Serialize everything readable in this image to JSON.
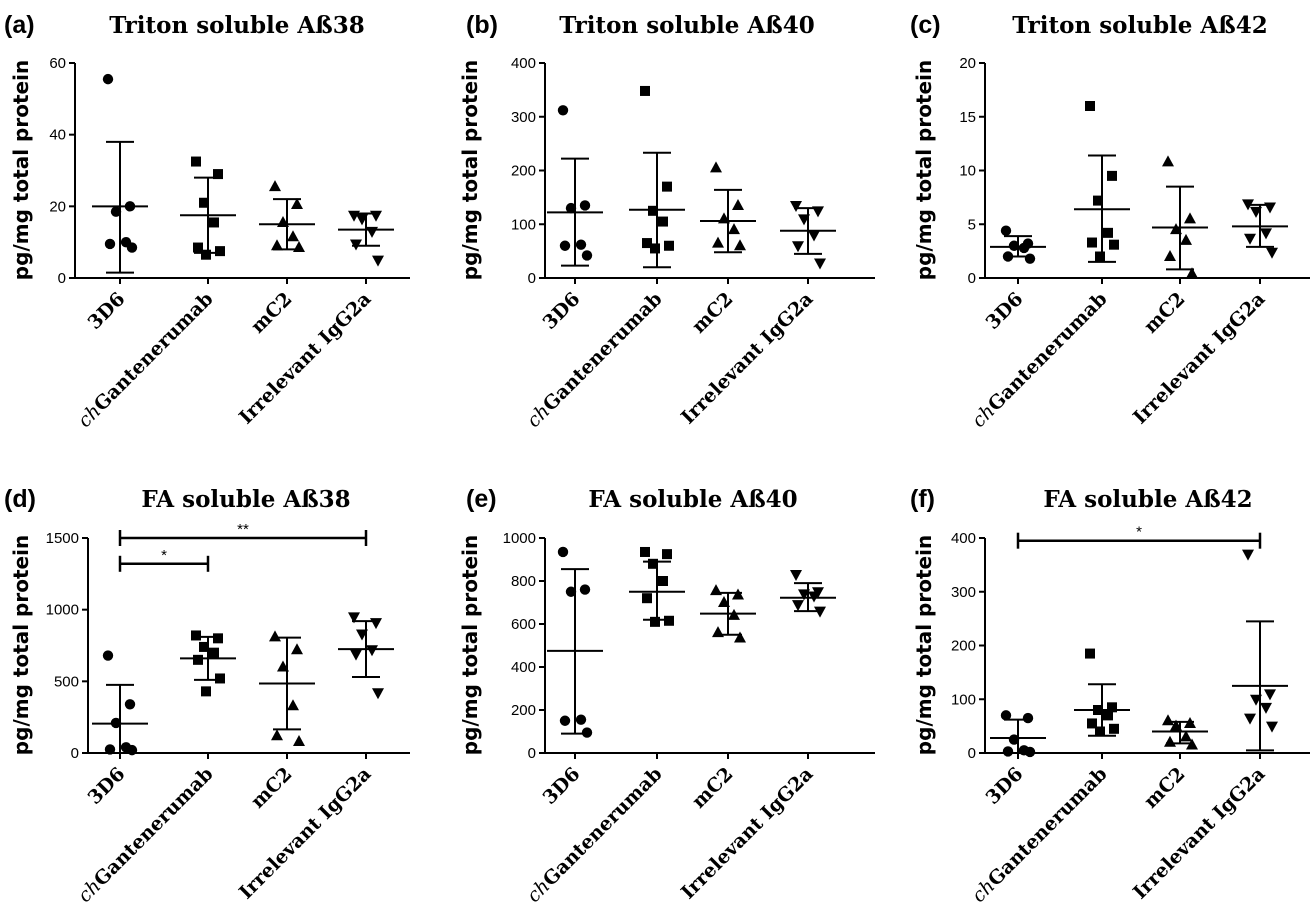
{
  "chart_data": [
    {
      "type": "scatter",
      "panel": "(a)",
      "title": "Triton soluble Aß38",
      "ylabel": "pg/mg total protein",
      "ylim": [
        0,
        60
      ],
      "yticks": [
        "0",
        "20",
        "40",
        "60"
      ],
      "categories": [
        {
          "prefix": "",
          "name": "3D6"
        },
        {
          "prefix": "ch",
          "name": "Gantenerumab"
        },
        {
          "prefix": "",
          "name": "mC2"
        },
        {
          "prefix": "",
          "name": "Irrelevant IgG2a"
        }
      ],
      "series": [
        {
          "marker": "circle",
          "points": [
            55.5,
            20,
            18.5,
            10,
            9.5,
            8.5
          ],
          "mean": 20,
          "sd_low": 1.5,
          "sd_high": 38
        },
        {
          "marker": "square",
          "points": [
            32.5,
            29,
            21,
            15.5,
            8.5,
            7.5,
            6.5
          ],
          "mean": 17.5,
          "sd_low": 7,
          "sd_high": 28
        },
        {
          "marker": "triangle-up",
          "points": [
            25.5,
            20.5,
            15.5,
            11.5,
            9,
            8.5
          ],
          "mean": 15,
          "sd_low": 8,
          "sd_high": 22
        },
        {
          "marker": "triangle-down",
          "points": [
            17.5,
            17.5,
            16.5,
            13,
            9.5,
            5
          ],
          "mean": 13.5,
          "sd_low": 9,
          "sd_high": 18
        }
      ],
      "significance": []
    },
    {
      "type": "scatter",
      "panel": "(b)",
      "title": "Triton soluble Aß40",
      "ylabel": "pg/mg total protein",
      "ylim": [
        0,
        400
      ],
      "yticks": [
        "0",
        "100",
        "200",
        "300",
        "400"
      ],
      "categories": [
        {
          "prefix": "",
          "name": "3D6"
        },
        {
          "prefix": "ch",
          "name": "Gantenerumab"
        },
        {
          "prefix": "",
          "name": "mC2"
        },
        {
          "prefix": "",
          "name": "Irrelevant IgG2a"
        }
      ],
      "series": [
        {
          "marker": "circle",
          "points": [
            312,
            135,
            130,
            62,
            60,
            42
          ],
          "mean": 122,
          "sd_low": 23,
          "sd_high": 222
        },
        {
          "marker": "square",
          "points": [
            348,
            170,
            125,
            105,
            65,
            60,
            55
          ],
          "mean": 127,
          "sd_low": 20,
          "sd_high": 233
        },
        {
          "marker": "triangle-up",
          "points": [
            205,
            135,
            110,
            90,
            65,
            60
          ],
          "mean": 106,
          "sd_low": 48,
          "sd_high": 164
        },
        {
          "marker": "triangle-down",
          "points": [
            135,
            125,
            110,
            80,
            60,
            28
          ],
          "mean": 88,
          "sd_low": 45,
          "sd_high": 130
        }
      ],
      "significance": []
    },
    {
      "type": "scatter",
      "panel": "(c)",
      "title": "Triton soluble Aß42",
      "ylabel": "pg/mg total protein",
      "ylim": [
        0,
        20
      ],
      "yticks": [
        "0",
        "5",
        "10",
        "15",
        "20"
      ],
      "categories": [
        {
          "prefix": "",
          "name": "3D6"
        },
        {
          "prefix": "ch",
          "name": "Gantenerumab"
        },
        {
          "prefix": "",
          "name": "mC2"
        },
        {
          "prefix": "",
          "name": "Irrelevant IgG2a"
        }
      ],
      "series": [
        {
          "marker": "circle",
          "points": [
            4.4,
            3.2,
            3.0,
            2.8,
            2.0,
            1.8
          ],
          "mean": 2.9,
          "sd_low": 2,
          "sd_high": 3.9
        },
        {
          "marker": "square",
          "points": [
            16,
            9.5,
            7.2,
            4.2,
            3.3,
            3.1,
            2.0
          ],
          "mean": 6.4,
          "sd_low": 1.5,
          "sd_high": 11.4
        },
        {
          "marker": "triangle-up",
          "points": [
            10.8,
            5.5,
            4.5,
            3.5,
            2.0,
            0.4
          ],
          "mean": 4.7,
          "sd_low": 0.8,
          "sd_high": 8.5
        },
        {
          "marker": "triangle-down",
          "points": [
            6.9,
            6.6,
            6.2,
            4.2,
            3.7,
            2.4
          ],
          "mean": 4.8,
          "sd_low": 2.9,
          "sd_high": 6.8
        }
      ],
      "significance": []
    },
    {
      "type": "scatter",
      "panel": "(d)",
      "title": "FA soluble Aß38",
      "ylabel": "pg/mg total protein",
      "ylim": [
        0,
        1500
      ],
      "yticks": [
        "0",
        "500",
        "1000",
        "1500"
      ],
      "categories": [
        {
          "prefix": "",
          "name": "3D6"
        },
        {
          "prefix": "ch",
          "name": "Gantenerumab"
        },
        {
          "prefix": "",
          "name": "mC2"
        },
        {
          "prefix": "",
          "name": "Irrelevant IgG2a"
        }
      ],
      "series": [
        {
          "marker": "circle",
          "points": [
            680,
            340,
            210,
            40,
            25,
            20
          ],
          "mean": 205,
          "sd_low": 0,
          "sd_high": 475
        },
        {
          "marker": "square",
          "points": [
            820,
            800,
            740,
            700,
            650,
            520,
            430
          ],
          "mean": 660,
          "sd_low": 510,
          "sd_high": 810
        },
        {
          "marker": "triangle-up",
          "points": [
            810,
            720,
            600,
            330,
            120,
            80
          ],
          "mean": 485,
          "sd_low": 165,
          "sd_high": 805
        },
        {
          "marker": "triangle-down",
          "points": [
            950,
            910,
            830,
            720,
            690,
            420
          ],
          "mean": 725,
          "sd_low": 530,
          "sd_high": 920
        }
      ],
      "significance": [
        {
          "from": 0,
          "to": 1,
          "label": "*",
          "y": 1320
        },
        {
          "from": 0,
          "to": 3,
          "label": "**",
          "y": 1500
        }
      ]
    },
    {
      "type": "scatter",
      "panel": "(e)",
      "title": "FA soluble Aß40",
      "ylabel": "pg/mg total protein",
      "ylim": [
        0,
        1000
      ],
      "yticks": [
        "0",
        "200",
        "400",
        "600",
        "800",
        "1000"
      ],
      "categories": [
        {
          "prefix": "",
          "name": "3D6"
        },
        {
          "prefix": "ch",
          "name": "Gantenerumab"
        },
        {
          "prefix": "",
          "name": "mC2"
        },
        {
          "prefix": "",
          "name": "Irrelevant IgG2a"
        }
      ],
      "series": [
        {
          "marker": "circle",
          "points": [
            935,
            760,
            750,
            155,
            150,
            95
          ],
          "mean": 475,
          "sd_low": 90,
          "sd_high": 855
        },
        {
          "marker": "square",
          "points": [
            935,
            925,
            880,
            800,
            720,
            615,
            610
          ],
          "mean": 750,
          "sd_low": 620,
          "sd_high": 890
        },
        {
          "marker": "triangle-up",
          "points": [
            755,
            735,
            700,
            640,
            560,
            535
          ],
          "mean": 648,
          "sd_low": 550,
          "sd_high": 745
        },
        {
          "marker": "triangle-down",
          "points": [
            830,
            750,
            740,
            730,
            690,
            660
          ],
          "mean": 722,
          "sd_low": 660,
          "sd_high": 790
        }
      ],
      "significance": []
    },
    {
      "type": "scatter",
      "panel": "(f)",
      "title": "FA soluble Aß42",
      "ylabel": "pg/mg total protein",
      "ylim": [
        0,
        400
      ],
      "yticks": [
        "0",
        "100",
        "200",
        "300",
        "400"
      ],
      "categories": [
        {
          "prefix": "",
          "name": "3D6"
        },
        {
          "prefix": "ch",
          "name": "Gantenerumab"
        },
        {
          "prefix": "",
          "name": "mC2"
        },
        {
          "prefix": "",
          "name": "Irrelevant IgG2a"
        }
      ],
      "series": [
        {
          "marker": "circle",
          "points": [
            70,
            65,
            25,
            5,
            3,
            2
          ],
          "mean": 28,
          "sd_low": 0,
          "sd_high": 62
        },
        {
          "marker": "square",
          "points": [
            185,
            85,
            80,
            70,
            55,
            45,
            40
          ],
          "mean": 80,
          "sd_low": 32,
          "sd_high": 128
        },
        {
          "marker": "triangle-up",
          "points": [
            60,
            55,
            50,
            30,
            20,
            15
          ],
          "mean": 40,
          "sd_low": 18,
          "sd_high": 58
        },
        {
          "marker": "triangle-down",
          "points": [
            370,
            110,
            100,
            85,
            65,
            50
          ],
          "mean": 125,
          "sd_low": 5,
          "sd_high": 245
        },
        {
          "marker": "none",
          "points": [],
          "mean": null,
          "sd_low": null,
          "sd_high": null
        }
      ],
      "significance": [
        {
          "from": 0,
          "to": 3,
          "label": "*",
          "y": 395
        }
      ]
    }
  ]
}
